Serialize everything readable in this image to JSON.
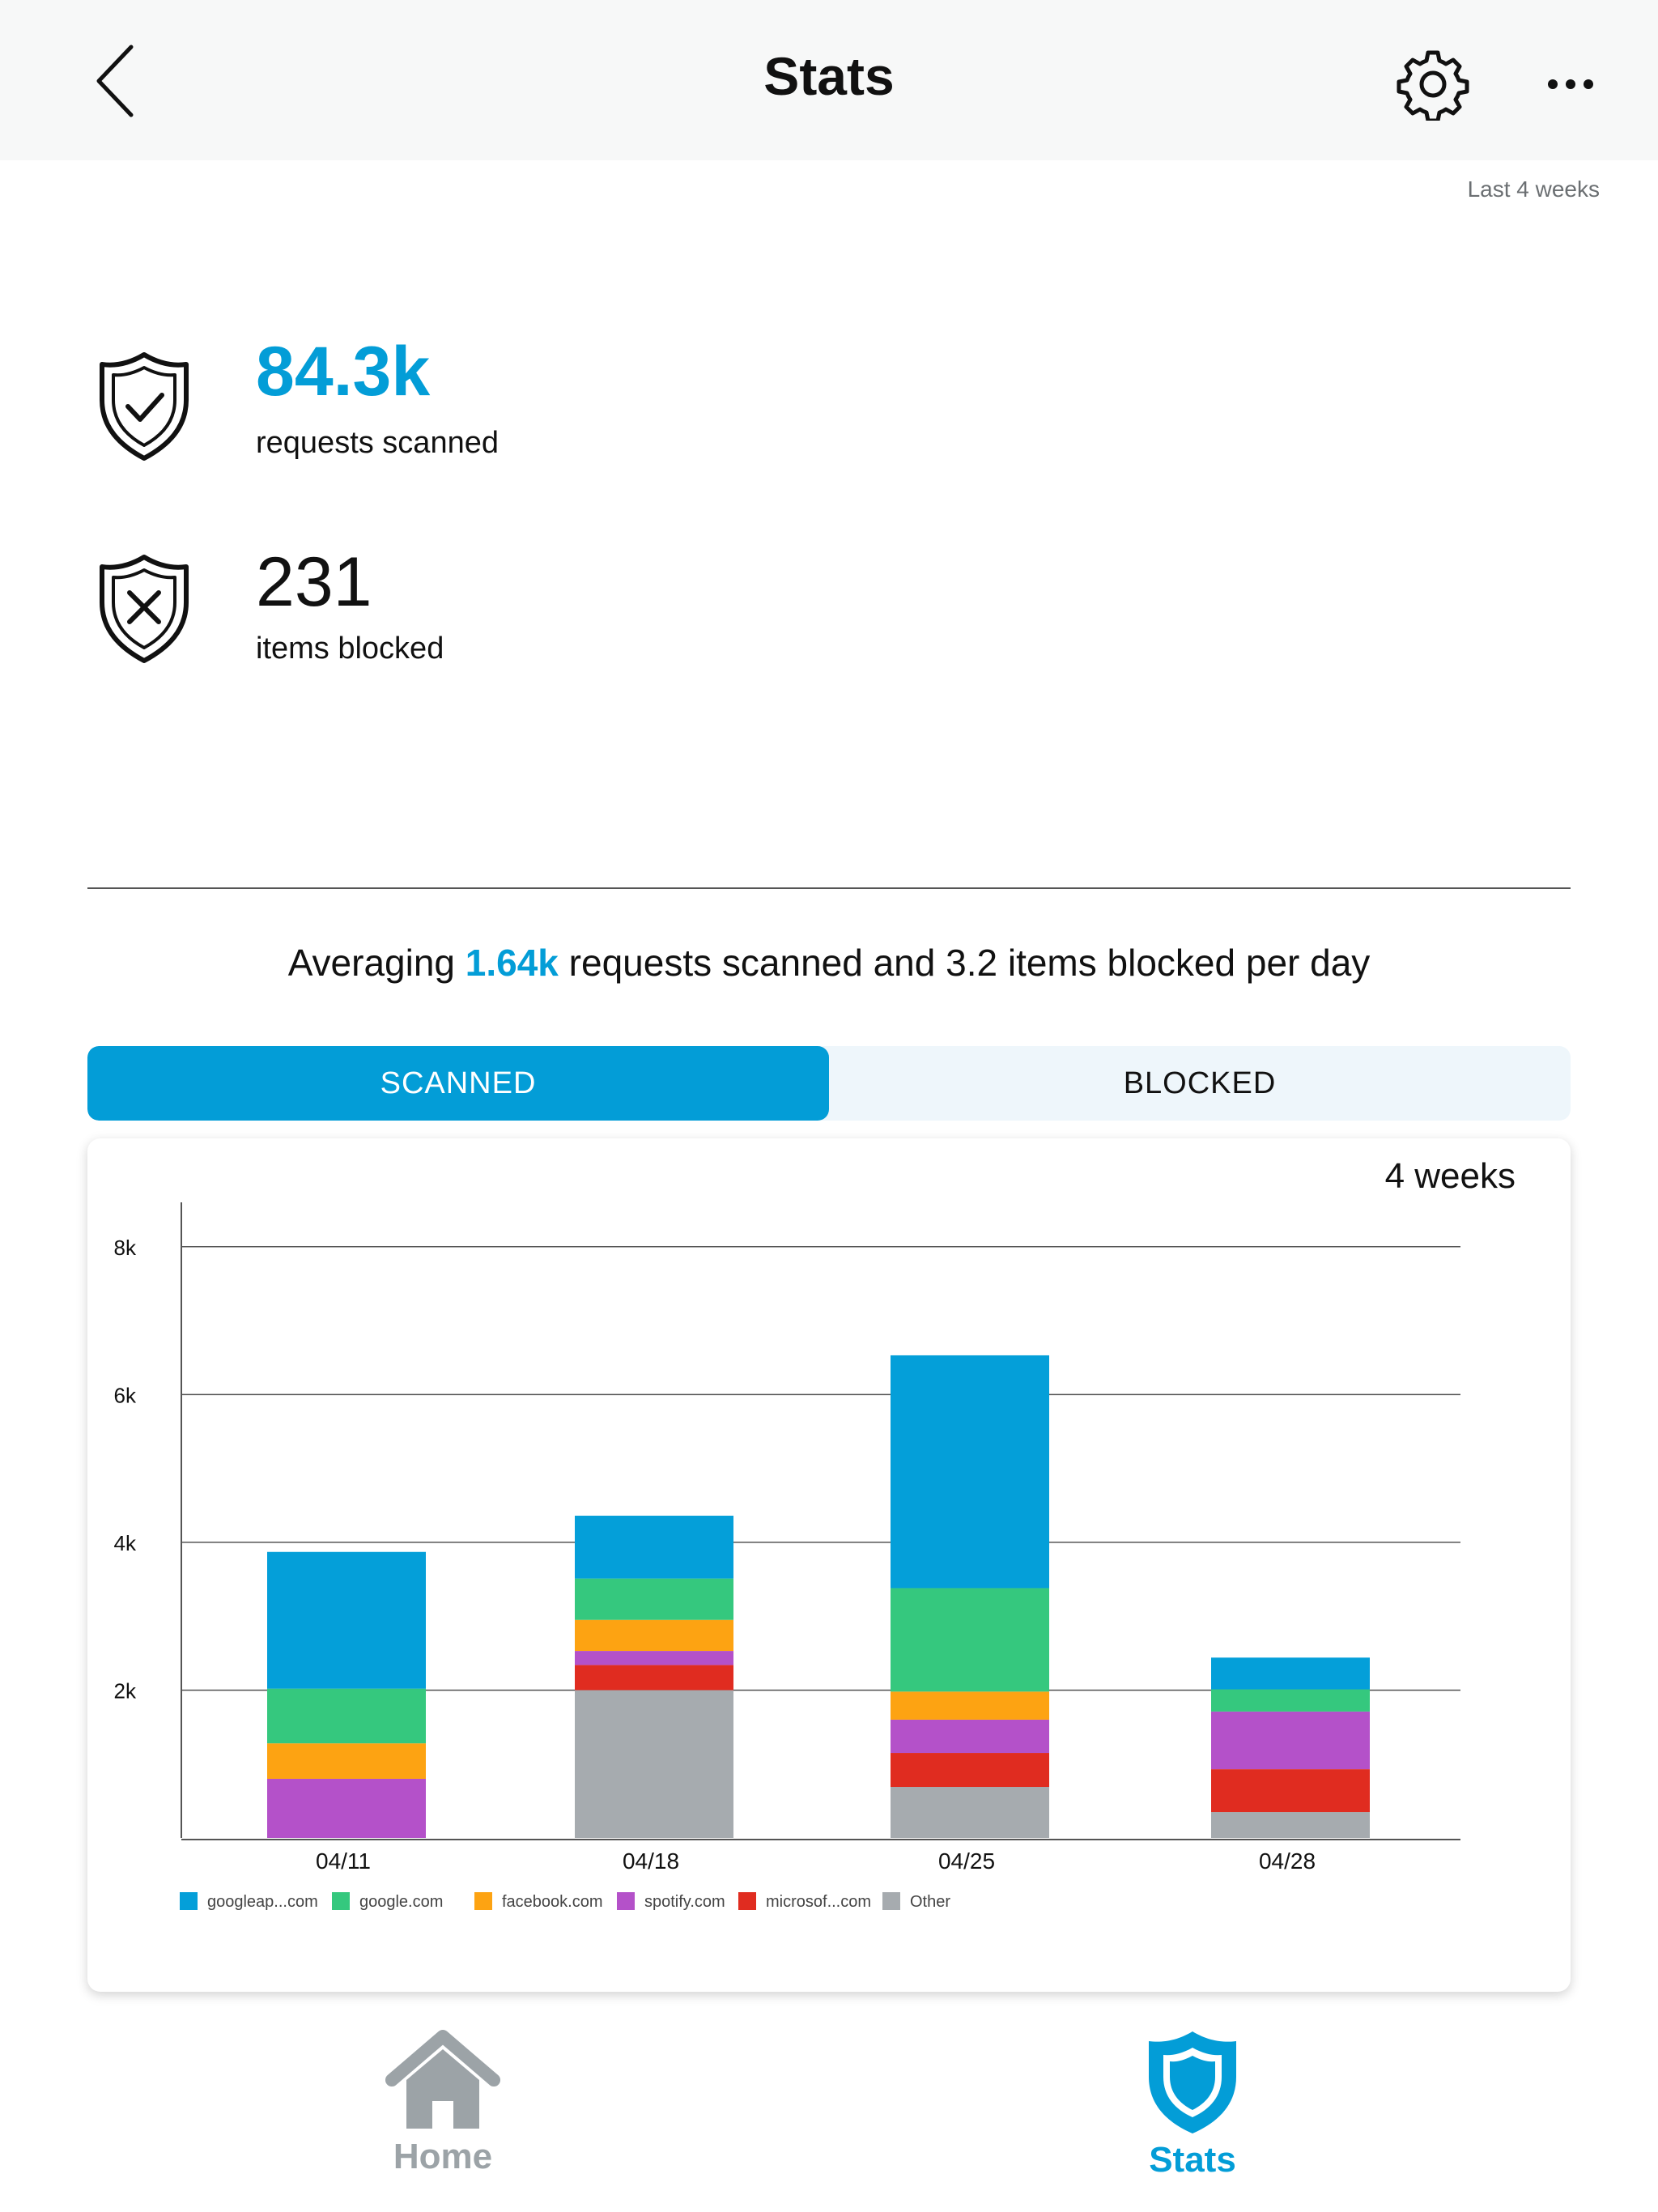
{
  "header": {
    "title": "Stats",
    "back_icon": "chevron-left-icon",
    "settings_icon": "gear-icon",
    "more_icon": "more-icon"
  },
  "period_label": "Last 4 weeks",
  "summary": {
    "scanned": {
      "value": "84.3k",
      "label": "requests scanned",
      "icon": "shield-check-icon"
    },
    "blocked": {
      "value": "231",
      "label": "items blocked",
      "icon": "shield-x-icon"
    }
  },
  "average": {
    "prefix": "Averaging ",
    "scanned": "1.64k",
    "suffix": " requests scanned and 3.2 items blocked per day"
  },
  "segment": {
    "options": [
      "SCANNED",
      "BLOCKED"
    ],
    "selected": "SCANNED"
  },
  "chart_range_label": "4 weeks",
  "colors": {
    "accent": "#039dd7",
    "segment_bg": "#eef6fb",
    "inactive": "#9ca3a7"
  },
  "chart_data": {
    "type": "bar",
    "stacked": true,
    "categories": [
      "04/11",
      "04/18",
      "04/25",
      "04/28"
    ],
    "ylim": [
      0,
      8600
    ],
    "yticks": [
      2000,
      4000,
      6000,
      8000
    ],
    "ytick_labels": [
      "2k",
      "4k",
      "6k",
      "8k"
    ],
    "grid": true,
    "legend_position": "bottom-left",
    "series": [
      {
        "name": "googleap...com",
        "color": "#049fd9",
        "values": [
          1850,
          850,
          3150,
          430
        ]
      },
      {
        "name": "google.com",
        "color": "#35c87e",
        "values": [
          740,
          560,
          1400,
          300
        ]
      },
      {
        "name": "facebook.com",
        "color": "#fda312",
        "values": [
          480,
          420,
          380,
          0
        ]
      },
      {
        "name": "spotify.com",
        "color": "#b451c9",
        "values": [
          800,
          190,
          450,
          780
        ]
      },
      {
        "name": "microsof...com",
        "color": "#e02c20",
        "values": [
          0,
          340,
          460,
          580
        ]
      },
      {
        "name": "Other",
        "color": "#a6abaf",
        "values": [
          0,
          2000,
          690,
          350
        ]
      }
    ]
  },
  "tabs": [
    {
      "label": "Home",
      "icon": "home-icon",
      "active": false
    },
    {
      "label": "Stats",
      "icon": "shield-icon",
      "active": true
    }
  ]
}
